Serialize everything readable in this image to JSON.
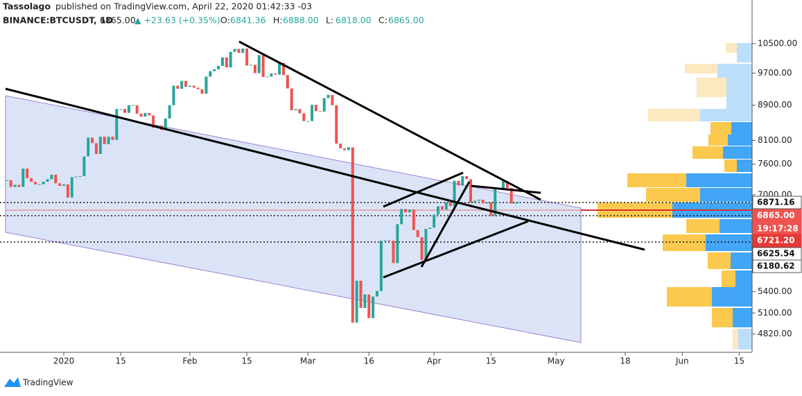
{
  "header": {
    "author": "Tassolago",
    "published": "published on TradingView.com, April 22, 2020 01:42:33 -03",
    "symbol": "BINANCE:BTCUSDT, 1D",
    "last": "6865.00",
    "change": "▲ +23.63 (+0.35%)",
    "ohlc": [
      [
        "O:",
        "6841.36"
      ],
      [
        "H:",
        "6888.00"
      ],
      [
        "L:",
        "6818.00"
      ],
      [
        "C:",
        "6865.00"
      ]
    ]
  },
  "price_labels": [
    {
      "text": "6871.16",
      "bg": "#ffffff",
      "fg": "#111111"
    },
    {
      "text": "6865.00",
      "bg": "#ef5350",
      "fg": "#ffffff"
    },
    {
      "text": "19:17:28",
      "bg": "#ef5350",
      "fg": "#ffffff"
    },
    {
      "text": "6721.20",
      "bg": "#e53935",
      "fg": "#ffffff"
    },
    {
      "text": "6625.54",
      "bg": "#ffffff",
      "fg": "#111111"
    },
    {
      "text": "6180.62",
      "bg": "#ffffff",
      "fg": "#111111"
    }
  ],
  "footer": {
    "brand": "TradingView"
  },
  "chart_data": {
    "type": "candlestick",
    "log_scale": true,
    "up_color": "#26a69a",
    "down_color": "#ef5350",
    "ylim": [
      4590,
      11800
    ],
    "yticks": [
      {
        "value": 10500,
        "label": "10500.00"
      },
      {
        "value": 9700,
        "label": "9700.00"
      },
      {
        "value": 8900,
        "label": "8900.00"
      },
      {
        "value": 8100,
        "label": "8100.00"
      },
      {
        "value": 7600,
        "label": "7600.00"
      },
      {
        "value": 7000,
        "label": "7000.00"
      },
      {
        "value": 5400,
        "label": "5400.00"
      },
      {
        "value": 5100,
        "label": "5100.00"
      },
      {
        "value": 4820,
        "label": "4820.00"
      }
    ],
    "x_labels": [
      "2020",
      "15",
      "Feb",
      "15",
      "Mar",
      "16",
      "Apr",
      "15",
      "May",
      "18",
      "Jun",
      "15"
    ],
    "values": [
      7280,
      7150,
      7190,
      7150,
      7510,
      7320,
      7250,
      7200,
      7200,
      7250,
      7300,
      7390,
      7220,
      7170,
      7200,
      6950,
      7340,
      7350,
      7360,
      7760,
      8160,
      8040,
      7810,
      8180,
      8020,
      8180,
      8110,
      8810,
      8810,
      8720,
      8900,
      8900,
      8700,
      8630,
      8720,
      8660,
      8380,
      8430,
      8330,
      8590,
      8900,
      9380,
      9300,
      9500,
      9350,
      9380,
      9330,
      9290,
      9180,
      9610,
      9750,
      9800,
      9890,
      10120,
      9850,
      10270,
      10350,
      10240,
      10360,
      9900,
      9920,
      9700,
      10180,
      9600,
      9610,
      9690,
      9660,
      9970,
      9650,
      9310,
      8780,
      8810,
      8710,
      8530,
      8530,
      8910,
      8760,
      8750,
      9070,
      9150,
      8900,
      8030,
      7930,
      7890,
      7950,
      4970,
      5560,
      5170,
      5360,
      5030,
      5330,
      5410,
      6190,
      6200,
      6190,
      5830,
      6470,
      6740,
      6680,
      6730,
      6370,
      6250,
      5880,
      6390,
      6410,
      6640,
      6790,
      6730,
      6860,
      6790,
      7270,
      7180,
      7360,
      7300,
      6860,
      6890,
      6910,
      6840,
      6860,
      6620,
      7110,
      7100,
      7260,
      7130,
      6840,
      6850,
      6865
    ]
  }
}
